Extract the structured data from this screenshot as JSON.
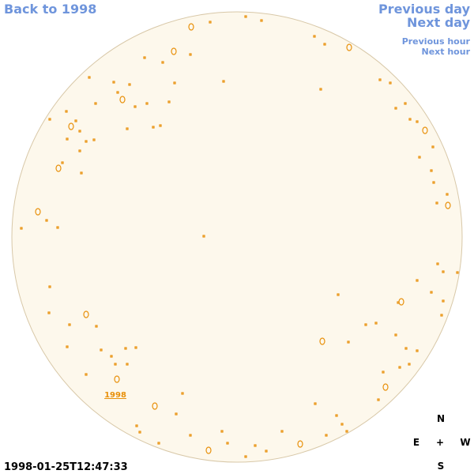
{
  "nav": {
    "back": "Back to 1998",
    "previous_day": "Previous day",
    "next_day": "Next day",
    "previous_hour": "Previous hour",
    "next_hour": "Next hour"
  },
  "region_label": "1998",
  "compass": {
    "north": "N",
    "east": "E",
    "center": "+",
    "west": "W",
    "south": "S"
  },
  "timestamp": "1998-01-25T12:47:33"
}
